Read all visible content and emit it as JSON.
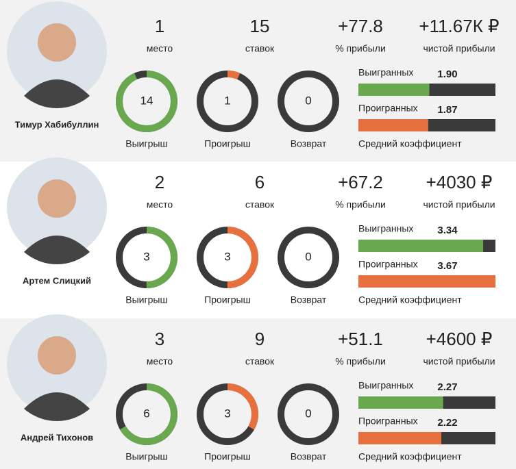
{
  "players": [
    {
      "name": "Тимур Хабибуллин",
      "place": 1,
      "place_label": "место",
      "bets": 15,
      "bets_label": "ставок",
      "profit_pct": "+77.8",
      "profit_pct_label": "% прибыли",
      "net_profit": "+11.67К ₽",
      "net_profit_label": "чистой прибыли",
      "wins": 14,
      "wins_label": "Выигрыш",
      "losses": 1,
      "losses_label": "Проигрыш",
      "returns": 0,
      "returns_label": "Возврат",
      "won_coef_label": "Выигранных",
      "won_coef": {
        "value": 1.9,
        "label": "1.90"
      },
      "lost_coef_label": "Проигранных",
      "lost_coef": 1.87,
      "coef_caption": "Средний коэффициент"
    },
    {
      "name": "Артем Слицкий",
      "place": 2,
      "place_label": "место",
      "bets": 6,
      "bets_label": "ставок",
      "profit_pct": "+67.2",
      "profit_pct_label": "% прибыли",
      "net_profit": "+4030 ₽",
      "net_profit_label": "чистой прибыли",
      "wins": 3,
      "wins_label": "Выигрыш",
      "losses": 3,
      "losses_label": "Проигрыш",
      "returns": 0,
      "returns_label": "Возврат",
      "won_coef_label": "Выигранных",
      "won_coef": 3.34,
      "lost_coef_label": "Проигранных",
      "lost_coef": 3.67,
      "coef_caption": "Средний коэффициент"
    },
    {
      "name": "Андрей Тихонов",
      "place": 3,
      "place_label": "место",
      "bets": 9,
      "bets_label": "ставок",
      "profit_pct": "+51.1",
      "profit_pct_label": "% прибыли",
      "net_profit": "+4600 ₽",
      "net_profit_label": "чистой прибыли",
      "wins": 6,
      "wins_label": "Выигрыш",
      "losses": 3,
      "losses_label": "Проигрыш",
      "returns": 0,
      "returns_label": "Возврат",
      "won_coef_label": "Выигранных",
      "won_coef": 2.27,
      "lost_coef_label": "Проигранных",
      "lost_coef": 2.22,
      "coef_caption": "Средний коэффициент"
    }
  ]
}
